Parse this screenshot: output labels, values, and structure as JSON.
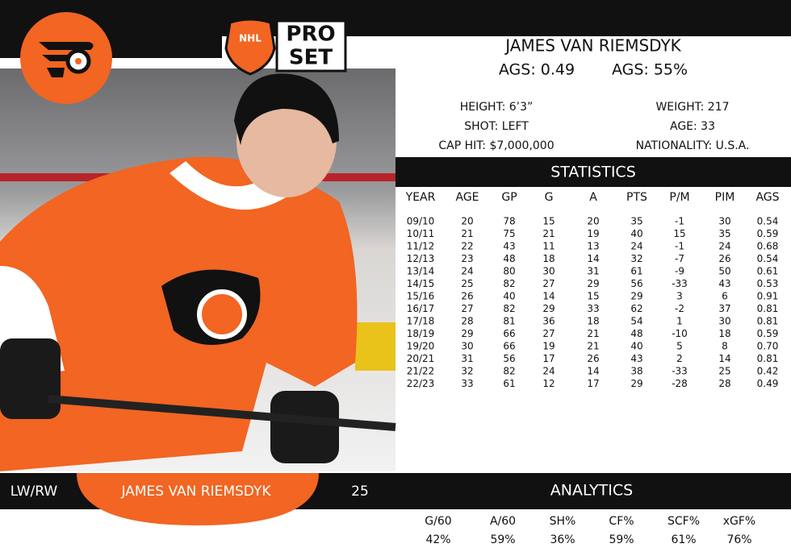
{
  "logo": {
    "league": "NHL",
    "brand_top": "PRO",
    "brand_bottom": "SET"
  },
  "player": {
    "name": "JAMES VAN RIEMSDYK",
    "ags_value": "AGS: 0.49",
    "ags_pct": "AGS: 55%"
  },
  "bio": {
    "height": "HEIGHT: 6’3”",
    "weight": "WEIGHT: 217",
    "shot": "SHOT: LEFT",
    "age": "AGE: 33",
    "cap_hit": "CAP HIT: $7,000,000",
    "nationality": "NATIONALITY: U.S.A."
  },
  "statistics": {
    "title": "STATISTICS",
    "columns": [
      "YEAR",
      "AGE",
      "GP",
      "G",
      "A",
      "PTS",
      "P/M",
      "PIM",
      "AGS"
    ],
    "rows": [
      [
        "09/10",
        "20",
        "78",
        "15",
        "20",
        "35",
        "-1",
        "30",
        "0.54"
      ],
      [
        "10/11",
        "21",
        "75",
        "21",
        "19",
        "40",
        "15",
        "35",
        "0.59"
      ],
      [
        "11/12",
        "22",
        "43",
        "11",
        "13",
        "24",
        "-1",
        "24",
        "0.68"
      ],
      [
        "12/13",
        "23",
        "48",
        "18",
        "14",
        "32",
        "-7",
        "26",
        "0.54"
      ],
      [
        "13/14",
        "24",
        "80",
        "30",
        "31",
        "61",
        "-9",
        "50",
        "0.61"
      ],
      [
        "14/15",
        "25",
        "82",
        "27",
        "29",
        "56",
        "-33",
        "43",
        "0.53"
      ],
      [
        "15/16",
        "26",
        "40",
        "14",
        "15",
        "29",
        "3",
        "6",
        "0.91"
      ],
      [
        "16/17",
        "27",
        "82",
        "29",
        "33",
        "62",
        "-2",
        "37",
        "0.81"
      ],
      [
        "17/18",
        "28",
        "81",
        "36",
        "18",
        "54",
        "1",
        "30",
        "0.81"
      ],
      [
        "18/19",
        "29",
        "66",
        "27",
        "21",
        "48",
        "-10",
        "18",
        "0.59"
      ],
      [
        "19/20",
        "30",
        "66",
        "19",
        "21",
        "40",
        "5",
        "8",
        "0.70"
      ],
      [
        "20/21",
        "31",
        "56",
        "17",
        "26",
        "43",
        "2",
        "14",
        "0.81"
      ],
      [
        "21/22",
        "32",
        "82",
        "24",
        "14",
        "38",
        "-33",
        "25",
        "0.42"
      ],
      [
        "22/23",
        "33",
        "61",
        "12",
        "17",
        "29",
        "-28",
        "28",
        "0.49"
      ]
    ]
  },
  "footer": {
    "position": "LW/RW",
    "name": "JAMES VAN RIEMSDYK",
    "number": "25"
  },
  "analytics": {
    "title": "ANALYTICS",
    "columns": [
      "G/60",
      "A/60",
      "SH%",
      "CF%",
      "SCF%",
      "xGF%"
    ],
    "values": [
      "42%",
      "59%",
      "36%",
      "59%",
      "61%",
      "76%"
    ]
  }
}
